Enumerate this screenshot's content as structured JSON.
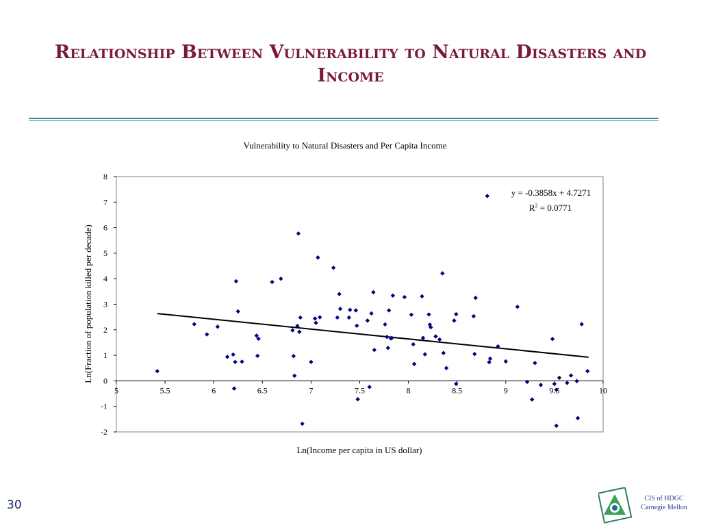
{
  "slide": {
    "title": "Relationship Between Vulnerability to Natural Disasters and Income",
    "page_number": "30",
    "org_line1": "CIS of HDGC",
    "org_line2": "Carnegie Mellon"
  },
  "chart_data": {
    "type": "scatter",
    "title": "Vulnerability to Natural Disasters and Per Capita Income",
    "xlabel": "Ln(Income per capita in US dollar)",
    "ylabel": "Ln(Fraction of population killed per decade)",
    "xlim": [
      5,
      10
    ],
    "ylim": [
      -2,
      8
    ],
    "xticks": [
      "5",
      "5.5",
      "6",
      "6.5",
      "7",
      "7.5",
      "8",
      "8.5",
      "9",
      "9.5",
      "10"
    ],
    "yticks": [
      "8",
      "7",
      "6",
      "5",
      "4",
      "3",
      "2",
      "1",
      "0",
      "-1",
      "-2"
    ],
    "grid": false,
    "marker_color": "#000080",
    "trendline": {
      "equation": "y = -0.3858x + 4.7271",
      "r2_label": "R",
      "r2_sup": "2",
      "r2_value": " = 0.0771",
      "slope": -0.3858,
      "intercept": 4.7271,
      "x_start": 5.42,
      "x_end": 9.85
    },
    "points": [
      [
        5.42,
        0.38
      ],
      [
        5.8,
        2.22
      ],
      [
        5.93,
        1.82
      ],
      [
        6.04,
        2.12
      ],
      [
        6.14,
        0.94
      ],
      [
        6.2,
        1.03
      ],
      [
        6.21,
        -0.3
      ],
      [
        6.22,
        0.74
      ],
      [
        6.23,
        3.9
      ],
      [
        6.25,
        2.72
      ],
      [
        6.29,
        0.75
      ],
      [
        6.44,
        1.77
      ],
      [
        6.45,
        0.98
      ],
      [
        6.46,
        1.65
      ],
      [
        6.6,
        3.87
      ],
      [
        6.69,
        4.0
      ],
      [
        6.81,
        1.98
      ],
      [
        6.82,
        0.97
      ],
      [
        6.83,
        0.2
      ],
      [
        6.86,
        2.15
      ],
      [
        6.87,
        5.77
      ],
      [
        6.88,
        1.92
      ],
      [
        6.89,
        2.48
      ],
      [
        6.91,
        -1.68
      ],
      [
        7.0,
        0.74
      ],
      [
        7.04,
        2.44
      ],
      [
        7.05,
        2.27
      ],
      [
        7.07,
        4.83
      ],
      [
        7.09,
        2.49
      ],
      [
        7.23,
        4.43
      ],
      [
        7.27,
        2.48
      ],
      [
        7.29,
        3.4
      ],
      [
        7.3,
        2.82
      ],
      [
        7.39,
        2.48
      ],
      [
        7.4,
        2.78
      ],
      [
        7.46,
        2.76
      ],
      [
        7.47,
        2.16
      ],
      [
        7.48,
        -0.72
      ],
      [
        7.58,
        2.36
      ],
      [
        7.6,
        -0.24
      ],
      [
        7.62,
        2.64
      ],
      [
        7.64,
        3.47
      ],
      [
        7.65,
        1.21
      ],
      [
        7.76,
        2.21
      ],
      [
        7.78,
        1.72
      ],
      [
        7.79,
        1.29
      ],
      [
        7.8,
        2.76
      ],
      [
        7.82,
        1.66
      ],
      [
        7.83,
        1.68
      ],
      [
        7.84,
        3.34
      ],
      [
        7.96,
        3.28
      ],
      [
        8.03,
        2.59
      ],
      [
        8.05,
        1.43
      ],
      [
        8.06,
        0.66
      ],
      [
        8.14,
        3.31
      ],
      [
        8.15,
        1.68
      ],
      [
        8.17,
        1.04
      ],
      [
        8.21,
        2.6
      ],
      [
        8.22,
        2.2
      ],
      [
        8.23,
        2.1
      ],
      [
        8.28,
        1.74
      ],
      [
        8.32,
        1.62
      ],
      [
        8.35,
        4.21
      ],
      [
        8.36,
        1.09
      ],
      [
        8.39,
        0.5
      ],
      [
        8.47,
        2.36
      ],
      [
        8.49,
        2.61
      ],
      [
        8.49,
        -0.12
      ],
      [
        8.67,
        2.53
      ],
      [
        8.68,
        1.05
      ],
      [
        8.69,
        3.25
      ],
      [
        8.81,
        7.24
      ],
      [
        8.83,
        0.73
      ],
      [
        8.84,
        0.87
      ],
      [
        8.92,
        1.35
      ],
      [
        9.0,
        0.76
      ],
      [
        9.12,
        2.9
      ],
      [
        9.22,
        -0.04
      ],
      [
        9.27,
        -0.73
      ],
      [
        9.3,
        0.7
      ],
      [
        9.36,
        -0.16
      ],
      [
        9.48,
        1.64
      ],
      [
        9.5,
        -0.12
      ],
      [
        9.52,
        -0.35
      ],
      [
        9.52,
        -1.76
      ],
      [
        9.55,
        0.12
      ],
      [
        9.63,
        -0.08
      ],
      [
        9.67,
        0.21
      ],
      [
        9.73,
        -0.01
      ],
      [
        9.74,
        -1.46
      ],
      [
        9.78,
        2.22
      ],
      [
        9.84,
        0.38
      ]
    ]
  }
}
